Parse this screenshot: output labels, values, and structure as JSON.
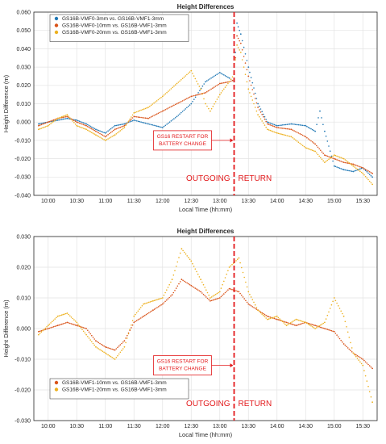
{
  "chart_data": [
    {
      "type": "scatter",
      "title": "Height Differences",
      "xlabel": "Local Time (hh:mm)",
      "ylabel": "Height Difference (m)",
      "xlim": [
        "09:45",
        "15:45"
      ],
      "ylim": [
        -0.04,
        0.06
      ],
      "x_ticks": [
        "10:00",
        "10:30",
        "11:00",
        "11:30",
        "12:00",
        "12:30",
        "13:00",
        "13:30",
        "14:00",
        "14:30",
        "15:00",
        "15:30"
      ],
      "y_ticks": [
        "-0.040",
        "-0.030",
        "-0.020",
        "-0.010",
        "0.000",
        "0.010",
        "0.020",
        "0.030",
        "0.040",
        "0.050",
        "0.060"
      ],
      "grid": true,
      "legend_position": "top-left",
      "annotation": "GS16 RESTART FOR\nBATTERY CHANGE",
      "annotation_lines": [
        "GS16 RESTART FOR",
        "BATTERY CHANGE"
      ],
      "vline_time": "13:15",
      "region_left_label": "OUTGOING",
      "region_right_label": "RETURN",
      "series": [
        {
          "name": "GS16B-VMF0-3mm vs. GS16B-VMF1-3mm",
          "color": "#1f77b4",
          "points": [
            [
              "09:50",
              -0.001
            ],
            [
              "10:00",
              0.0
            ],
            [
              "10:10",
              0.001
            ],
            [
              "10:20",
              0.002
            ],
            [
              "10:30",
              0.001
            ],
            [
              "10:40",
              -0.001
            ],
            [
              "10:50",
              -0.004
            ],
            [
              "11:00",
              -0.006
            ],
            [
              "11:10",
              -0.002
            ],
            [
              "11:20",
              -0.001
            ],
            [
              "11:30",
              0.001
            ],
            [
              "11:45",
              -0.001
            ],
            [
              "12:00",
              -0.003
            ],
            [
              "12:15",
              0.003
            ],
            [
              "12:30",
              0.01
            ],
            [
              "12:45",
              0.022
            ],
            [
              "13:00",
              0.027
            ],
            [
              "13:10",
              0.024
            ],
            [
              "13:15",
              0.022
            ],
            [
              "13:18",
              0.054
            ],
            [
              "13:22",
              0.048
            ],
            [
              "13:30",
              0.03
            ],
            [
              "13:40",
              0.01
            ],
            [
              "13:50",
              0.0
            ],
            [
              "14:00",
              -0.002
            ],
            [
              "14:15",
              -0.001
            ],
            [
              "14:30",
              -0.002
            ],
            [
              "14:40",
              -0.005
            ],
            [
              "14:45",
              0.006
            ],
            [
              "14:50",
              -0.005
            ],
            [
              "15:00",
              -0.024
            ],
            [
              "15:10",
              -0.026
            ],
            [
              "15:20",
              -0.027
            ],
            [
              "15:30",
              -0.025
            ],
            [
              "15:40",
              -0.03
            ]
          ]
        },
        {
          "name": "GS16B-VMF0-10mm vs. GS16B-VMF1-3mm",
          "color": "#d95319",
          "points": [
            [
              "09:50",
              -0.002
            ],
            [
              "10:00",
              0.0
            ],
            [
              "10:10",
              0.002
            ],
            [
              "10:20",
              0.003
            ],
            [
              "10:30",
              0.0
            ],
            [
              "10:40",
              -0.002
            ],
            [
              "10:50",
              -0.005
            ],
            [
              "11:00",
              -0.008
            ],
            [
              "11:10",
              -0.004
            ],
            [
              "11:20",
              -0.002
            ],
            [
              "11:30",
              0.003
            ],
            [
              "11:45",
              0.002
            ],
            [
              "12:00",
              0.006
            ],
            [
              "12:15",
              0.01
            ],
            [
              "12:30",
              0.014
            ],
            [
              "12:45",
              0.016
            ],
            [
              "13:00",
              0.021
            ],
            [
              "13:10",
              0.022
            ],
            [
              "13:15",
              0.023
            ],
            [
              "13:18",
              0.047
            ],
            [
              "13:22",
              0.043
            ],
            [
              "13:30",
              0.025
            ],
            [
              "13:40",
              0.008
            ],
            [
              "13:50",
              -0.001
            ],
            [
              "14:00",
              -0.003
            ],
            [
              "14:15",
              -0.004
            ],
            [
              "14:30",
              -0.008
            ],
            [
              "14:40",
              -0.012
            ],
            [
              "14:50",
              -0.018
            ],
            [
              "15:00",
              -0.02
            ],
            [
              "15:10",
              -0.022
            ],
            [
              "15:20",
              -0.023
            ],
            [
              "15:30",
              -0.025
            ],
            [
              "15:40",
              -0.028
            ]
          ]
        },
        {
          "name": "GS16B-VMF0-20mm vs. GS16B-VMF1-3mm",
          "color": "#edb120",
          "points": [
            [
              "09:50",
              -0.004
            ],
            [
              "10:00",
              -0.002
            ],
            [
              "10:10",
              0.002
            ],
            [
              "10:20",
              0.004
            ],
            [
              "10:30",
              -0.002
            ],
            [
              "10:40",
              -0.004
            ],
            [
              "10:50",
              -0.007
            ],
            [
              "11:00",
              -0.01
            ],
            [
              "11:10",
              -0.007
            ],
            [
              "11:20",
              -0.003
            ],
            [
              "11:30",
              0.005
            ],
            [
              "11:45",
              0.008
            ],
            [
              "12:00",
              0.014
            ],
            [
              "12:15",
              0.021
            ],
            [
              "12:30",
              0.028
            ],
            [
              "12:40",
              0.018
            ],
            [
              "12:45",
              0.01
            ],
            [
              "12:50",
              0.006
            ],
            [
              "13:00",
              0.015
            ],
            [
              "13:10",
              0.022
            ],
            [
              "13:15",
              0.026
            ],
            [
              "13:18",
              0.042
            ],
            [
              "13:22",
              0.038
            ],
            [
              "13:30",
              0.018
            ],
            [
              "13:40",
              0.004
            ],
            [
              "13:50",
              -0.004
            ],
            [
              "14:00",
              -0.006
            ],
            [
              "14:15",
              -0.008
            ],
            [
              "14:30",
              -0.014
            ],
            [
              "14:40",
              -0.016
            ],
            [
              "14:50",
              -0.022
            ],
            [
              "15:00",
              -0.018
            ],
            [
              "15:10",
              -0.02
            ],
            [
              "15:20",
              -0.024
            ],
            [
              "15:30",
              -0.028
            ],
            [
              "15:40",
              -0.034
            ]
          ]
        }
      ]
    },
    {
      "type": "scatter",
      "title": "Height Differences",
      "xlabel": "Local Time (hh:mm)",
      "ylabel": "Height Difference (m)",
      "xlim": [
        "09:45",
        "15:45"
      ],
      "ylim": [
        -0.03,
        0.03
      ],
      "x_ticks": [
        "10:00",
        "10:30",
        "11:00",
        "11:30",
        "12:00",
        "12:30",
        "13:00",
        "13:30",
        "14:00",
        "14:30",
        "15:00",
        "15:30"
      ],
      "y_ticks": [
        "-0.030",
        "-0.020",
        "-0.010",
        "0.000",
        "0.010",
        "0.020",
        "0.030"
      ],
      "grid": true,
      "legend_position": "bottom-left",
      "annotation": "GS16 RESTART FOR\nBATTERY CHANGE",
      "annotation_lines": [
        "GS16 RESTART FOR",
        "BATTERY CHANGE"
      ],
      "vline_time": "13:15",
      "region_left_label": "OUTGOING",
      "region_right_label": "RETURN",
      "series": [
        {
          "name": "GS16B-VMF1-10mm vs. GS16B-VMF1-3mm",
          "color": "#d95319",
          "points": [
            [
              "09:50",
              -0.001
            ],
            [
              "10:00",
              0.0
            ],
            [
              "10:10",
              0.001
            ],
            [
              "10:20",
              0.002
            ],
            [
              "10:30",
              0.001
            ],
            [
              "10:40",
              0.0
            ],
            [
              "10:50",
              -0.004
            ],
            [
              "11:00",
              -0.006
            ],
            [
              "11:10",
              -0.007
            ],
            [
              "11:20",
              -0.004
            ],
            [
              "11:30",
              0.002
            ],
            [
              "11:40",
              0.004
            ],
            [
              "11:50",
              0.006
            ],
            [
              "12:00",
              0.008
            ],
            [
              "12:10",
              0.011
            ],
            [
              "12:20",
              0.016
            ],
            [
              "12:30",
              0.014
            ],
            [
              "12:40",
              0.012
            ],
            [
              "12:50",
              0.009
            ],
            [
              "13:00",
              0.01
            ],
            [
              "13:10",
              0.013
            ],
            [
              "13:20",
              0.012
            ],
            [
              "13:30",
              0.008
            ],
            [
              "13:40",
              0.006
            ],
            [
              "13:50",
              0.004
            ],
            [
              "14:00",
              0.003
            ],
            [
              "14:10",
              0.002
            ],
            [
              "14:20",
              0.001
            ],
            [
              "14:30",
              0.002
            ],
            [
              "14:40",
              0.001
            ],
            [
              "14:50",
              0.0
            ],
            [
              "15:00",
              -0.001
            ],
            [
              "15:10",
              -0.005
            ],
            [
              "15:20",
              -0.008
            ],
            [
              "15:30",
              -0.01
            ],
            [
              "15:40",
              -0.013
            ]
          ]
        },
        {
          "name": "GS16B-VMF1-20mm vs. GS16B-VMF1-3mm",
          "color": "#edb120",
          "points": [
            [
              "09:50",
              -0.002
            ],
            [
              "10:00",
              0.001
            ],
            [
              "10:10",
              0.004
            ],
            [
              "10:20",
              0.005
            ],
            [
              "10:30",
              0.002
            ],
            [
              "10:40",
              -0.002
            ],
            [
              "10:50",
              -0.006
            ],
            [
              "11:00",
              -0.008
            ],
            [
              "11:10",
              -0.01
            ],
            [
              "11:20",
              -0.006
            ],
            [
              "11:30",
              0.004
            ],
            [
              "11:40",
              0.008
            ],
            [
              "11:50",
              0.009
            ],
            [
              "12:00",
              0.01
            ],
            [
              "12:10",
              0.016
            ],
            [
              "12:20",
              0.026
            ],
            [
              "12:30",
              0.022
            ],
            [
              "12:40",
              0.016
            ],
            [
              "12:50",
              0.01
            ],
            [
              "13:00",
              0.012
            ],
            [
              "13:10",
              0.02
            ],
            [
              "13:20",
              0.023
            ],
            [
              "13:30",
              0.012
            ],
            [
              "13:40",
              0.006
            ],
            [
              "13:50",
              0.003
            ],
            [
              "14:00",
              0.004
            ],
            [
              "14:10",
              0.001
            ],
            [
              "14:20",
              0.003
            ],
            [
              "14:30",
              0.002
            ],
            [
              "14:40",
              0.0
            ],
            [
              "14:50",
              0.002
            ],
            [
              "15:00",
              0.01
            ],
            [
              "15:10",
              0.004
            ],
            [
              "15:20",
              -0.008
            ],
            [
              "15:30",
              -0.012
            ],
            [
              "15:40",
              -0.024
            ]
          ]
        }
      ]
    }
  ]
}
